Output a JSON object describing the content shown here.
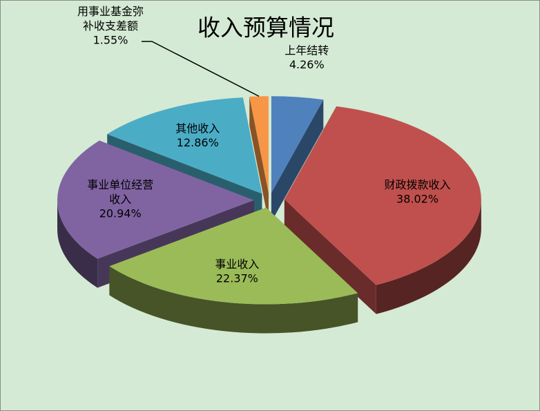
{
  "chart_data": {
    "type": "pie3d",
    "title": "收入预算情况",
    "categories": [
      "上年结转",
      "财政拨款收入",
      "事业收入",
      "事业单位经营收入",
      "其他收入",
      "用事业基金弥补收支差额"
    ],
    "values": [
      4.26,
      38.02,
      22.37,
      20.94,
      12.86,
      1.55
    ],
    "value_labels": [
      "4.26%",
      "38.02%",
      "22.37%",
      "20.94%",
      "12.86%",
      "1.55%"
    ],
    "colors": [
      "#4f81bd",
      "#c0504d",
      "#9bbb59",
      "#8064a2",
      "#4bacc6",
      "#f79646"
    ]
  }
}
